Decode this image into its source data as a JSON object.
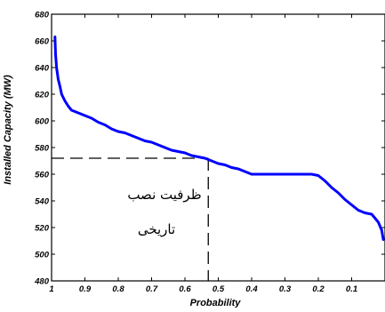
{
  "chart_data": {
    "type": "line",
    "xlabel": "Probability",
    "ylabel": "Installed Capacity (MW)",
    "x_reversed": true,
    "xlim": [
      1.0,
      0.0
    ],
    "ylim": [
      480,
      680
    ],
    "xticks": [
      1,
      0.9,
      0.8,
      0.7,
      0.6,
      0.5,
      0.4,
      0.3,
      0.2,
      0.1
    ],
    "xtick_labels": [
      "1",
      "0.9",
      "0.8",
      "0.7",
      "0.6",
      "0.5",
      "0.4",
      "0.3",
      "0.2",
      "0.1"
    ],
    "yticks": [
      480,
      500,
      520,
      540,
      560,
      580,
      600,
      620,
      640,
      660,
      680
    ],
    "ytick_labels": [
      "480",
      "500",
      "520",
      "540",
      "560",
      "580",
      "600",
      "620",
      "640",
      "660",
      "680"
    ],
    "grid": false,
    "series": [
      {
        "color": "#0000ff",
        "x": [
          0.99,
          0.988,
          0.985,
          0.98,
          0.975,
          0.97,
          0.96,
          0.95,
          0.94,
          0.92,
          0.9,
          0.88,
          0.86,
          0.84,
          0.82,
          0.8,
          0.78,
          0.76,
          0.74,
          0.72,
          0.7,
          0.68,
          0.66,
          0.64,
          0.62,
          0.6,
          0.58,
          0.56,
          0.54,
          0.52,
          0.5,
          0.48,
          0.46,
          0.44,
          0.42,
          0.4,
          0.35,
          0.3,
          0.25,
          0.22,
          0.2,
          0.18,
          0.16,
          0.14,
          0.12,
          0.1,
          0.08,
          0.06,
          0.04,
          0.03,
          0.02,
          0.01,
          0.005
        ],
        "y": [
          663,
          650,
          640,
          631,
          626,
          620,
          615,
          611,
          608,
          606,
          604,
          602,
          599,
          597,
          594,
          592,
          591,
          589,
          587,
          585,
          584,
          582,
          580,
          578,
          577,
          576,
          574,
          573,
          572,
          570,
          568,
          567,
          565,
          564,
          562,
          560,
          560,
          560,
          560,
          560,
          559,
          555,
          550,
          546,
          541,
          537,
          533,
          531,
          530,
          527,
          524,
          518,
          511
        ]
      }
    ],
    "annotation": {
      "text_line1": "ظرفیت نصب",
      "text_line2": "تاریخی",
      "marker_x": 0.53,
      "marker_y": 572
    }
  }
}
